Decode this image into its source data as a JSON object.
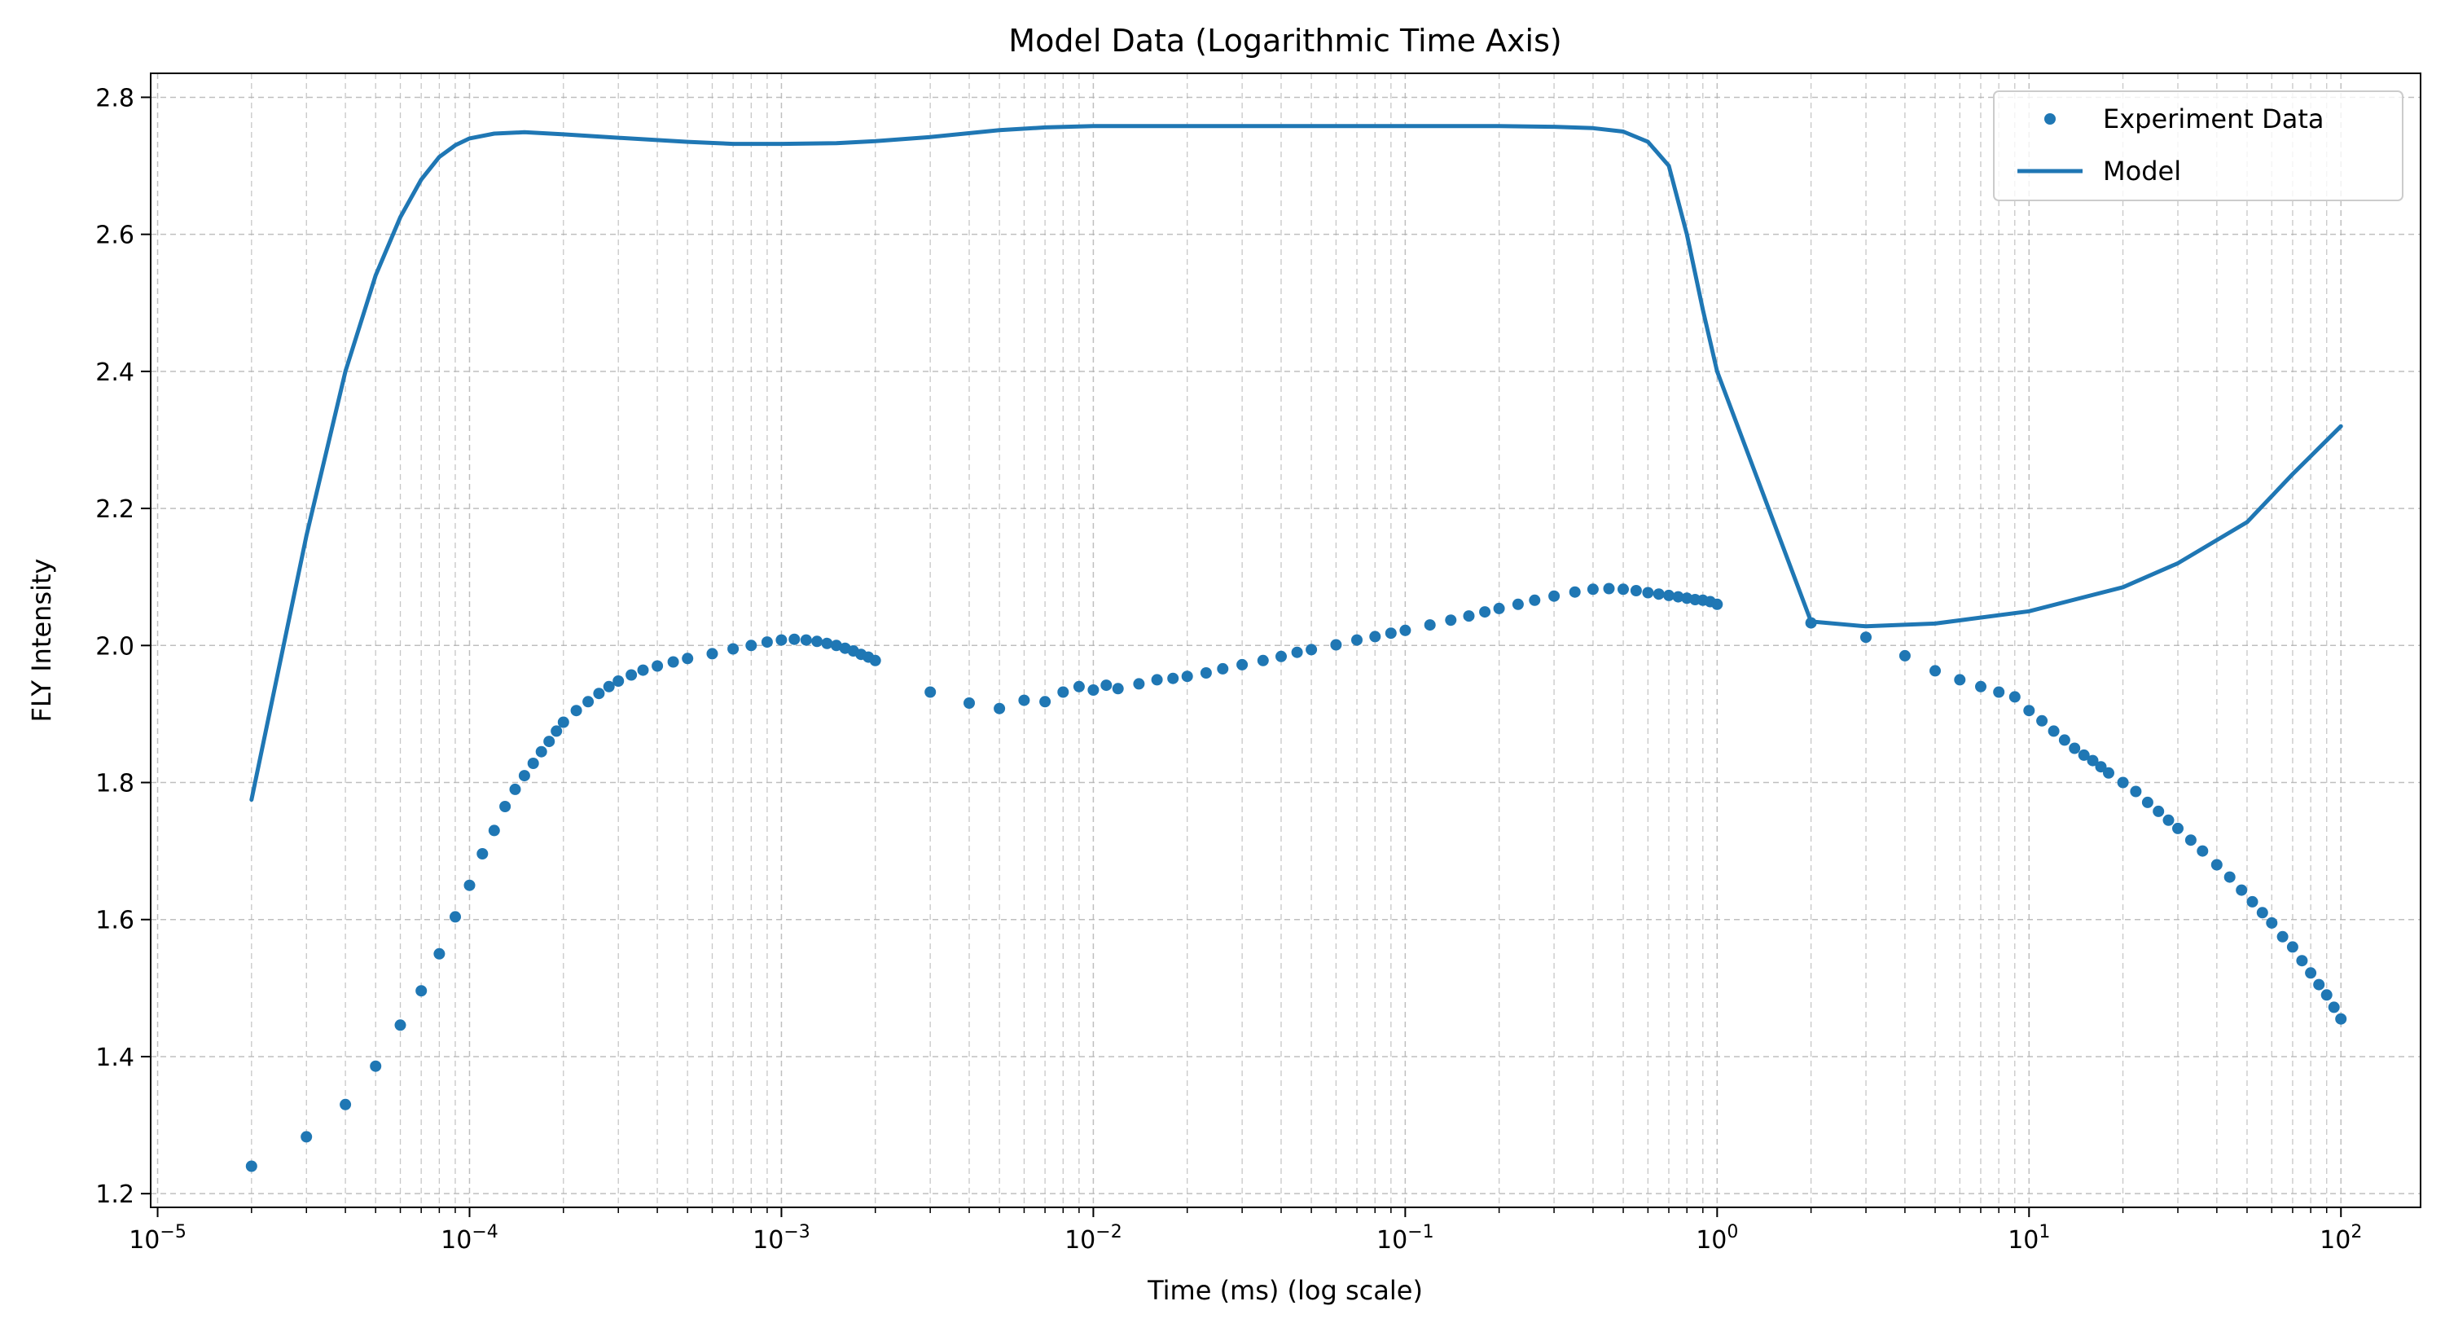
{
  "chart_data": {
    "type": "scatter",
    "title": "Model Data (Logarithmic Time Axis)",
    "xlabel": "Time (ms) (log scale)",
    "ylabel": "FLY Intensity",
    "xscale": "log",
    "xlim": [
      9.5e-06,
      180
    ],
    "ylim": [
      1.18,
      2.835
    ],
    "grid": true,
    "legend_position": "top-right",
    "x_ticks": [
      {
        "value": 1e-05,
        "base": "10",
        "exp": "−5"
      },
      {
        "value": 0.0001,
        "base": "10",
        "exp": "−4"
      },
      {
        "value": 0.001,
        "base": "10",
        "exp": "−3"
      },
      {
        "value": 0.01,
        "base": "10",
        "exp": "−2"
      },
      {
        "value": 0.1,
        "base": "10",
        "exp": "−1"
      },
      {
        "value": 1,
        "base": "10",
        "exp": "0"
      },
      {
        "value": 10,
        "base": "10",
        "exp": "1"
      },
      {
        "value": 100,
        "base": "10",
        "exp": "2"
      }
    ],
    "y_ticks": [
      {
        "value": 1.2,
        "label": "1.2"
      },
      {
        "value": 1.4,
        "label": "1.4"
      },
      {
        "value": 1.6,
        "label": "1.6"
      },
      {
        "value": 1.8,
        "label": "1.8"
      },
      {
        "value": 2.0,
        "label": "2.0"
      },
      {
        "value": 2.2,
        "label": "2.2"
      },
      {
        "value": 2.4,
        "label": "2.4"
      },
      {
        "value": 2.6,
        "label": "2.6"
      },
      {
        "value": 2.8,
        "label": "2.8"
      }
    ],
    "series": [
      {
        "name": "Experiment Data",
        "kind": "scatter",
        "color": "#1f77b4",
        "points": [
          [
            2e-05,
            1.24
          ],
          [
            3e-05,
            1.283
          ],
          [
            4e-05,
            1.33
          ],
          [
            5e-05,
            1.386
          ],
          [
            6e-05,
            1.446
          ],
          [
            7e-05,
            1.496
          ],
          [
            8e-05,
            1.55
          ],
          [
            9e-05,
            1.604
          ],
          [
            0.0001,
            1.65
          ],
          [
            0.00011,
            1.696
          ],
          [
            0.00012,
            1.73
          ],
          [
            0.00013,
            1.765
          ],
          [
            0.00014,
            1.79
          ],
          [
            0.00015,
            1.81
          ],
          [
            0.00016,
            1.828
          ],
          [
            0.00017,
            1.845
          ],
          [
            0.00018,
            1.86
          ],
          [
            0.00019,
            1.875
          ],
          [
            0.0002,
            1.888
          ],
          [
            0.00022,
            1.905
          ],
          [
            0.00024,
            1.918
          ],
          [
            0.00026,
            1.93
          ],
          [
            0.00028,
            1.94
          ],
          [
            0.0003,
            1.948
          ],
          [
            0.00033,
            1.957
          ],
          [
            0.00036,
            1.964
          ],
          [
            0.0004,
            1.97
          ],
          [
            0.00045,
            1.976
          ],
          [
            0.0005,
            1.981
          ],
          [
            0.0006,
            1.988
          ],
          [
            0.0007,
            1.995
          ],
          [
            0.0008,
            2.0
          ],
          [
            0.0009,
            2.005
          ],
          [
            0.001,
            2.008
          ],
          [
            0.0011,
            2.009
          ],
          [
            0.0012,
            2.008
          ],
          [
            0.0013,
            2.006
          ],
          [
            0.0014,
            2.003
          ],
          [
            0.0015,
            2.0
          ],
          [
            0.0016,
            1.996
          ],
          [
            0.0017,
            1.992
          ],
          [
            0.0018,
            1.987
          ],
          [
            0.0019,
            1.983
          ],
          [
            0.002,
            1.978
          ],
          [
            0.003,
            1.932
          ],
          [
            0.004,
            1.916
          ],
          [
            0.005,
            1.908
          ],
          [
            0.006,
            1.92
          ],
          [
            0.007,
            1.918
          ],
          [
            0.008,
            1.932
          ],
          [
            0.009,
            1.94
          ],
          [
            0.01,
            1.935
          ],
          [
            0.011,
            1.942
          ],
          [
            0.012,
            1.937
          ],
          [
            0.014,
            1.944
          ],
          [
            0.016,
            1.95
          ],
          [
            0.018,
            1.952
          ],
          [
            0.02,
            1.955
          ],
          [
            0.023,
            1.96
          ],
          [
            0.026,
            1.966
          ],
          [
            0.03,
            1.972
          ],
          [
            0.035,
            1.978
          ],
          [
            0.04,
            1.984
          ],
          [
            0.045,
            1.99
          ],
          [
            0.05,
            1.994
          ],
          [
            0.06,
            2.001
          ],
          [
            0.07,
            2.008
          ],
          [
            0.08,
            2.013
          ],
          [
            0.09,
            2.018
          ],
          [
            0.1,
            2.022
          ],
          [
            0.12,
            2.03
          ],
          [
            0.14,
            2.037
          ],
          [
            0.16,
            2.043
          ],
          [
            0.18,
            2.049
          ],
          [
            0.2,
            2.054
          ],
          [
            0.23,
            2.06
          ],
          [
            0.26,
            2.066
          ],
          [
            0.3,
            2.072
          ],
          [
            0.35,
            2.078
          ],
          [
            0.4,
            2.082
          ],
          [
            0.45,
            2.083
          ],
          [
            0.5,
            2.082
          ],
          [
            0.55,
            2.08
          ],
          [
            0.6,
            2.077
          ],
          [
            0.65,
            2.075
          ],
          [
            0.7,
            2.073
          ],
          [
            0.75,
            2.071
          ],
          [
            0.8,
            2.069
          ],
          [
            0.85,
            2.067
          ],
          [
            0.9,
            2.066
          ],
          [
            0.95,
            2.064
          ],
          [
            1.0,
            2.06
          ],
          [
            2,
            2.033
          ],
          [
            3,
            2.012
          ],
          [
            4,
            1.985
          ],
          [
            5,
            1.963
          ],
          [
            6,
            1.95
          ],
          [
            7,
            1.94
          ],
          [
            8,
            1.932
          ],
          [
            9,
            1.925
          ],
          [
            10,
            1.905
          ],
          [
            11,
            1.89
          ],
          [
            12,
            1.875
          ],
          [
            13,
            1.862
          ],
          [
            14,
            1.85
          ],
          [
            15,
            1.84
          ],
          [
            16,
            1.832
          ],
          [
            17,
            1.823
          ],
          [
            18,
            1.814
          ],
          [
            20,
            1.8
          ],
          [
            22,
            1.787
          ],
          [
            24,
            1.771
          ],
          [
            26,
            1.758
          ],
          [
            28,
            1.745
          ],
          [
            30,
            1.733
          ],
          [
            33,
            1.716
          ],
          [
            36,
            1.7
          ],
          [
            40,
            1.68
          ],
          [
            44,
            1.662
          ],
          [
            48,
            1.643
          ],
          [
            52,
            1.626
          ],
          [
            56,
            1.61
          ],
          [
            60,
            1.595
          ],
          [
            65,
            1.575
          ],
          [
            70,
            1.56
          ],
          [
            75,
            1.54
          ],
          [
            80,
            1.522
          ],
          [
            85,
            1.505
          ],
          [
            90,
            1.49
          ],
          [
            95,
            1.472
          ],
          [
            100,
            1.455
          ]
        ]
      },
      {
        "name": "Model",
        "kind": "line",
        "color": "#1f77b4",
        "points": [
          [
            2e-05,
            1.775
          ],
          [
            3e-05,
            2.16
          ],
          [
            4e-05,
            2.4
          ],
          [
            5e-05,
            2.54
          ],
          [
            6e-05,
            2.625
          ],
          [
            7e-05,
            2.68
          ],
          [
            8e-05,
            2.713
          ],
          [
            9e-05,
            2.73
          ],
          [
            0.0001,
            2.74
          ],
          [
            0.00012,
            2.747
          ],
          [
            0.00015,
            2.749
          ],
          [
            0.0002,
            2.746
          ],
          [
            0.0003,
            2.741
          ],
          [
            0.0005,
            2.735
          ],
          [
            0.0007,
            2.732
          ],
          [
            0.001,
            2.732
          ],
          [
            0.0015,
            2.733
          ],
          [
            0.002,
            2.736
          ],
          [
            0.003,
            2.742
          ],
          [
            0.005,
            2.752
          ],
          [
            0.007,
            2.756
          ],
          [
            0.01,
            2.758
          ],
          [
            0.03,
            2.758
          ],
          [
            0.1,
            2.758
          ],
          [
            0.2,
            2.758
          ],
          [
            0.3,
            2.757
          ],
          [
            0.4,
            2.755
          ],
          [
            0.5,
            2.75
          ],
          [
            0.6,
            2.735
          ],
          [
            0.7,
            2.7
          ],
          [
            0.8,
            2.6
          ],
          [
            0.9,
            2.49
          ],
          [
            1.0,
            2.4
          ],
          [
            2.0,
            2.035
          ],
          [
            3.0,
            2.028
          ],
          [
            5,
            2.032
          ],
          [
            10,
            2.05
          ],
          [
            20,
            2.085
          ],
          [
            30,
            2.12
          ],
          [
            50,
            2.18
          ],
          [
            70,
            2.25
          ],
          [
            100,
            2.32
          ]
        ]
      }
    ]
  }
}
